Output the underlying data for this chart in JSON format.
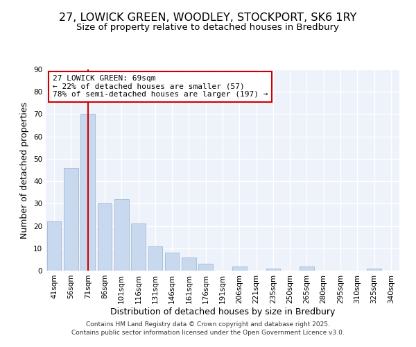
{
  "title": "27, LOWICK GREEN, WOODLEY, STOCKPORT, SK6 1RY",
  "subtitle": "Size of property relative to detached houses in Bredbury",
  "xlabel": "Distribution of detached houses by size in Bredbury",
  "ylabel": "Number of detached properties",
  "bar_labels": [
    "41sqm",
    "56sqm",
    "71sqm",
    "86sqm",
    "101sqm",
    "116sqm",
    "131sqm",
    "146sqm",
    "161sqm",
    "176sqm",
    "191sqm",
    "206sqm",
    "221sqm",
    "235sqm",
    "250sqm",
    "265sqm",
    "280sqm",
    "295sqm",
    "310sqm",
    "325sqm",
    "340sqm"
  ],
  "bar_values": [
    22,
    46,
    70,
    30,
    32,
    21,
    11,
    8,
    6,
    3,
    0,
    2,
    0,
    1,
    0,
    2,
    0,
    0,
    0,
    1,
    0
  ],
  "bar_color": "#c8d8ee",
  "bar_edge_color": "#a8c0d8",
  "vline_x": 2,
  "vline_color": "#cc0000",
  "ylim": [
    0,
    90
  ],
  "yticks": [
    0,
    10,
    20,
    30,
    40,
    50,
    60,
    70,
    80,
    90
  ],
  "annotation_line1": "27 LOWICK GREEN: 69sqm",
  "annotation_line2": "← 22% of detached houses are smaller (57)",
  "annotation_line3": "78% of semi-detached houses are larger (197) →",
  "annotation_box_color": "#ffffff",
  "annotation_box_edge": "#cc0000",
  "footer1": "Contains HM Land Registry data © Crown copyright and database right 2025.",
  "footer2": "Contains public sector information licensed under the Open Government Licence v3.0.",
  "bg_color": "#ffffff",
  "plot_bg_color": "#eef2fa",
  "grid_color": "#ffffff",
  "title_fontsize": 11.5,
  "subtitle_fontsize": 9.5,
  "axis_label_fontsize": 9,
  "tick_fontsize": 7.5,
  "annotation_fontsize": 8,
  "footer_fontsize": 6.5
}
